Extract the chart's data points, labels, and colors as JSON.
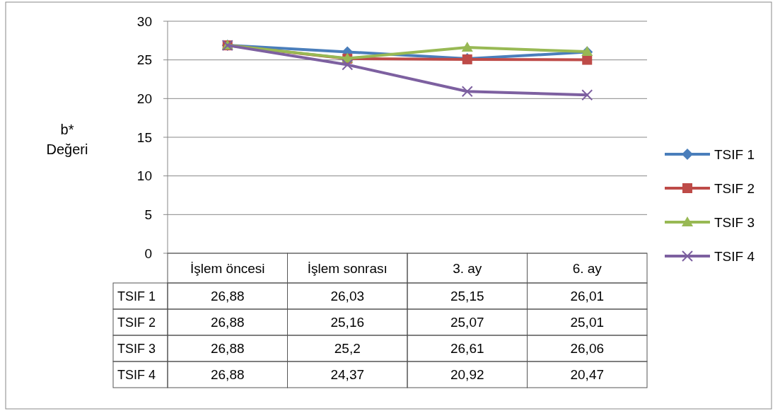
{
  "chart_data": {
    "type": "line",
    "ylabel": "b* Değeri",
    "categories": [
      "İşlem öncesi",
      "İşlem sonrası",
      "3. ay",
      "6. ay"
    ],
    "ylim": [
      0,
      30
    ],
    "yticks": [
      0,
      5,
      10,
      15,
      20,
      25,
      30
    ],
    "grid": "y",
    "legend": "right",
    "series": [
      {
        "name": "TSIF 1",
        "color": "#4a7ebb",
        "marker": "diamond",
        "values": [
          26.88,
          26.03,
          25.15,
          26.01
        ],
        "value_labels": [
          "26,88",
          "26,03",
          "25,15",
          "26,01"
        ]
      },
      {
        "name": "TSIF 2",
        "color": "#be4b48",
        "marker": "square",
        "values": [
          26.88,
          25.16,
          25.07,
          25.01
        ],
        "value_labels": [
          "26,88",
          "25,16",
          "25,07",
          "25,01"
        ]
      },
      {
        "name": "TSIF 3",
        "color": "#98b954",
        "marker": "triangle",
        "values": [
          26.88,
          25.2,
          26.61,
          26.06
        ],
        "value_labels": [
          "26,88",
          "25,2",
          "26,61",
          "26,06"
        ]
      },
      {
        "name": "TSIF 4",
        "color": "#7d60a0",
        "marker": "cross",
        "values": [
          26.88,
          24.37,
          20.92,
          20.47
        ],
        "value_labels": [
          "26,88",
          "24,37",
          "20,92",
          "20,47"
        ]
      }
    ]
  }
}
